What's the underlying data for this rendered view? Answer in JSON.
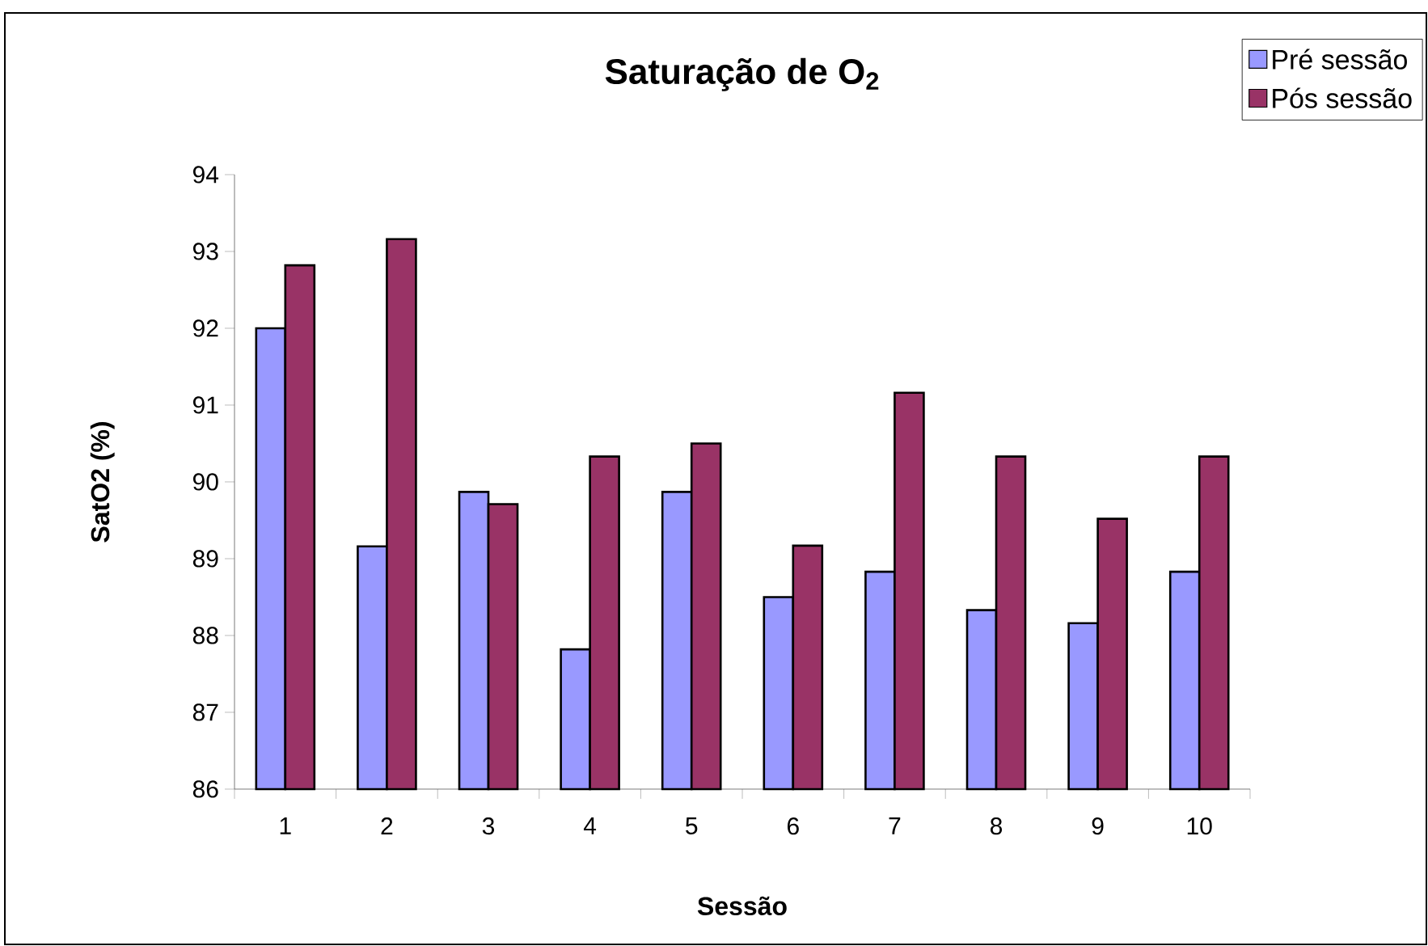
{
  "chart_data": {
    "type": "bar",
    "title": "Saturação de O$_{2}$",
    "xlabel": "Sessão",
    "ylabel": "SatO2 (%)",
    "categories": [
      "1",
      "2",
      "3",
      "4",
      "5",
      "6",
      "7",
      "8",
      "9",
      "10"
    ],
    "series": [
      {
        "name": "Pré sessão",
        "color": "#9999ff",
        "values": [
          92.0,
          89.16,
          89.87,
          87.82,
          89.87,
          88.5,
          88.83,
          88.33,
          88.16,
          88.83
        ]
      },
      {
        "name": "Pós sessão",
        "color": "#993366",
        "values": [
          92.82,
          93.16,
          89.71,
          90.33,
          90.5,
          89.17,
          91.16,
          90.33,
          89.52,
          90.33
        ]
      }
    ],
    "ylim": [
      86,
      94
    ],
    "yticks": [
      86,
      87,
      88,
      89,
      90,
      91,
      92,
      93,
      94
    ],
    "grid": false,
    "legend": "top right"
  }
}
